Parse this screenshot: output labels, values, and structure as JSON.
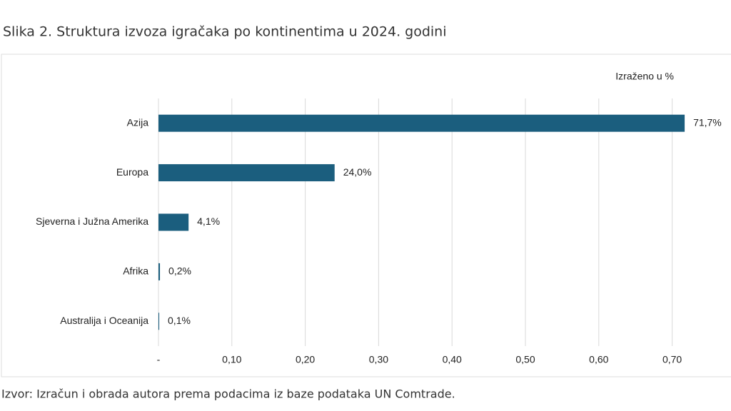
{
  "chart_data": {
    "type": "bar",
    "orientation": "horizontal",
    "title": "Slika 2. Struktura izvoza igračaka po kontinentima u 2024. godini",
    "unit_note": "Izraženo u %",
    "source": "Izvor: Izračun i obrada autora prema podacima iz baze podataka UN Comtrade.",
    "categories": [
      "Azija",
      "Europa",
      "Sjeverna i Južna Amerika",
      "Afrika",
      "Australija i Oceanija"
    ],
    "values": [
      0.717,
      0.24,
      0.041,
      0.002,
      0.001
    ],
    "value_labels": [
      "71,7%",
      "24,0%",
      "4,1%",
      "0,2%",
      "0,1%"
    ],
    "color": "#1b5e7e",
    "xlim": [
      0,
      0.75
    ],
    "xticks": [
      {
        "value": 0,
        "label": "-"
      },
      {
        "value": 0.1,
        "label": "0,10"
      },
      {
        "value": 0.2,
        "label": "0,20"
      },
      {
        "value": 0.3,
        "label": "0,30"
      },
      {
        "value": 0.4,
        "label": "0,40"
      },
      {
        "value": 0.5,
        "label": "0,50"
      },
      {
        "value": 0.6,
        "label": "0,60"
      },
      {
        "value": 0.7,
        "label": "0,70"
      }
    ],
    "grid": true
  }
}
